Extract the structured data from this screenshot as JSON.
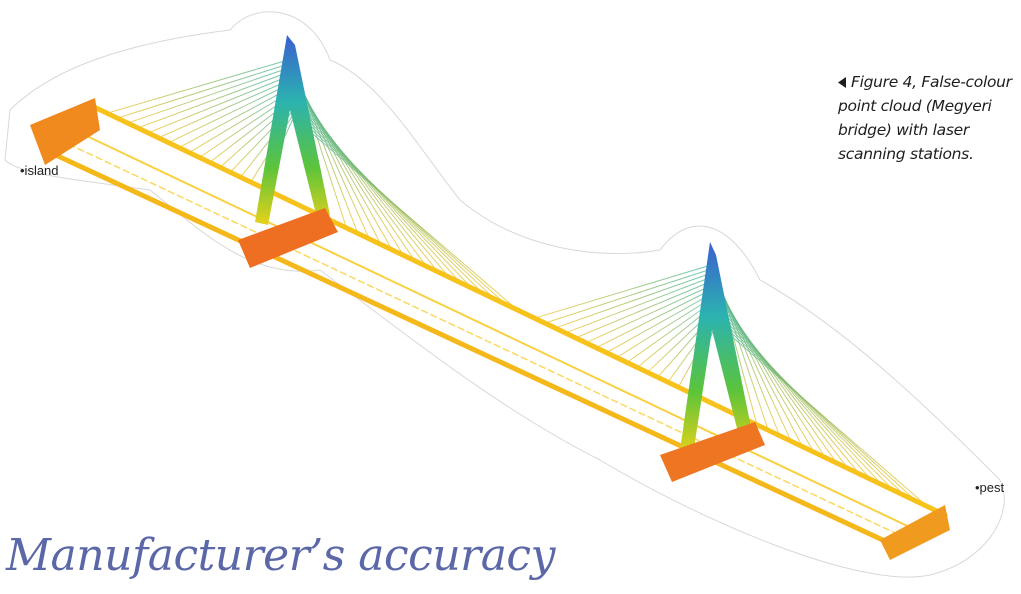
{
  "figure": {
    "caption": "Figure 4, False-colour point cloud (Megyeri bridge) with laser scanning stations.",
    "stations": [
      "•island",
      "•pest"
    ]
  },
  "heading": "Manufacturer’s accuracy"
}
